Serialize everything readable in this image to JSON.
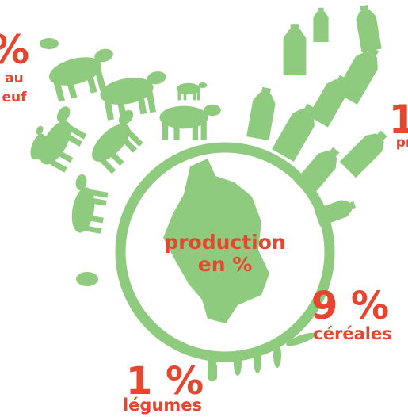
{
  "header": {
    "title_line1": "production",
    "title_line2": "en %"
  },
  "labels": [
    {
      "value": "%",
      "name_line1": "au",
      "name_line2": "euf"
    },
    {
      "value": "1",
      "name_line1": "pr"
    },
    {
      "value": "9 %",
      "name_line1": "céréales"
    },
    {
      "value": "1 %",
      "name_line1": "légumes"
    }
  ]
}
